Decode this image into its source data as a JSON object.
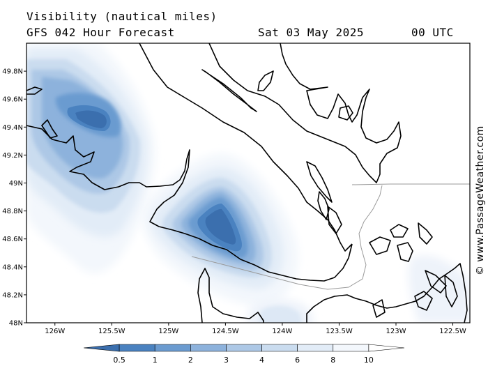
{
  "header": {
    "title_line1": "Visibility (nautical miles)",
    "title_line2": "GFS 042 Hour Forecast",
    "date": "Sat 03 May 2025",
    "time": "00 UTC"
  },
  "watermark": "© www.PassageWeather.com",
  "map": {
    "lat_labels": [
      "49.8N",
      "49.6N",
      "49.4N",
      "49.2N",
      "49N",
      "48.8N",
      "48.6N",
      "48.4N",
      "48.2N",
      "48N"
    ],
    "lon_labels": [
      "126W",
      "125.5W",
      "125W",
      "124.5W",
      "124W",
      "123.5W",
      "123W",
      "122.5W"
    ],
    "lat_range": [
      48.0,
      50.0
    ],
    "lon_range": [
      -126.25,
      -122.35
    ],
    "colors": {
      "land_outline": "#000000",
      "border": "#9a9a9a",
      "background": "#ffffff"
    }
  },
  "colorbar": {
    "labels": [
      "0.5",
      "1",
      "2",
      "3",
      "4",
      "6",
      "8",
      "10"
    ],
    "colors": [
      "#3b6fae",
      "#4a82c0",
      "#6b9bd0",
      "#8db2dc",
      "#adc8e6",
      "#cadcef",
      "#e2ecf7",
      "#f3f7fc",
      "#ffffff"
    ]
  }
}
